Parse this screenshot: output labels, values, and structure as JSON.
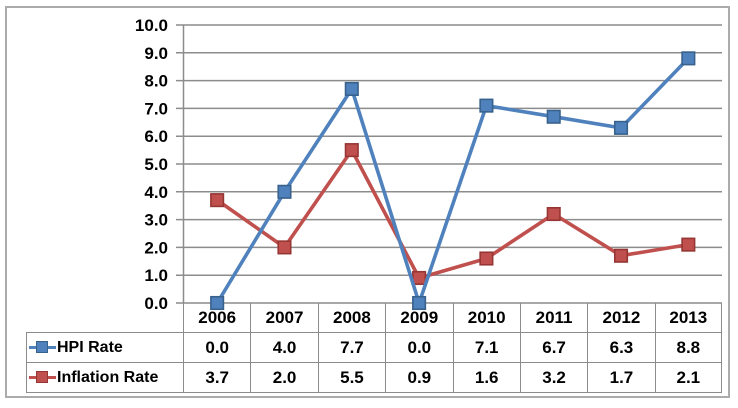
{
  "chart_data": {
    "type": "line",
    "title": "",
    "categories": [
      "2006",
      "2007",
      "2008",
      "2009",
      "2010",
      "2011",
      "2012",
      "2013"
    ],
    "series": [
      {
        "name": "HPI Rate",
        "values": [
          0.0,
          4.0,
          7.7,
          0.0,
          7.1,
          6.7,
          6.3,
          8.8
        ],
        "color": "#4F81BD",
        "marker_border": "#38618C"
      },
      {
        "name": "Inflation Rate",
        "values": [
          3.7,
          2.0,
          5.5,
          0.9,
          1.6,
          3.2,
          1.7,
          2.1
        ],
        "color": "#C0504D",
        "marker_border": "#963634"
      }
    ],
    "ylim": [
      0.0,
      10.0
    ],
    "ytick_step": 1.0,
    "ytick_labels": [
      "10.0",
      "9.0",
      "8.0",
      "7.0",
      "6.0",
      "5.0",
      "4.0",
      "3.0",
      "2.0",
      "1.0",
      "0.0"
    ],
    "xlabel": "",
    "ylabel": "",
    "grid": "horizontal-only",
    "marker": "square",
    "legend_position": "left-of-data-table",
    "value_format": "one-decimal",
    "colors": {
      "gridline": "#8c8c8c",
      "table_border": "#8c8c8c",
      "outer_frame": "#ababab",
      "text": "#000000",
      "background": "#ffffff"
    }
  }
}
